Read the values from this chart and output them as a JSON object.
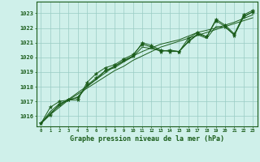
{
  "title": "Graphe pression niveau de la mer (hPa)",
  "bg_color": "#cff0ea",
  "grid_color": "#99ccc4",
  "line_color": "#1a5c1a",
  "marker_color": "#1a5c1a",
  "xlim": [
    -0.5,
    23.5
  ],
  "ylim": [
    1015.3,
    1023.8
  ],
  "yticks": [
    1016,
    1017,
    1018,
    1019,
    1020,
    1021,
    1022,
    1023
  ],
  "xticks": [
    0,
    1,
    2,
    3,
    4,
    5,
    6,
    7,
    8,
    9,
    10,
    11,
    12,
    13,
    14,
    15,
    16,
    17,
    18,
    19,
    20,
    21,
    22,
    23
  ],
  "hours": [
    0,
    1,
    2,
    3,
    4,
    5,
    6,
    7,
    8,
    9,
    10,
    11,
    12,
    13,
    14,
    15,
    16,
    17,
    18,
    19,
    20,
    21,
    22,
    23
  ],
  "series_main": [
    1015.5,
    1016.1,
    1016.8,
    1017.1,
    1017.3,
    1018.1,
    1018.6,
    1019.1,
    1019.4,
    1019.8,
    1020.1,
    1021.0,
    1020.8,
    1020.5,
    1020.4,
    1020.4,
    1021.1,
    1021.6,
    1021.4,
    1022.5,
    1022.1,
    1021.5,
    1022.8,
    1023.1
  ],
  "series2": [
    1015.5,
    1016.6,
    1017.0,
    1017.1,
    1017.1,
    1018.3,
    1018.9,
    1019.3,
    1019.5,
    1019.9,
    1020.2,
    1020.9,
    1020.7,
    1020.4,
    1020.5,
    1020.4,
    1021.3,
    1021.7,
    1021.4,
    1022.6,
    1022.2,
    1021.6,
    1022.9,
    1023.2
  ],
  "series3": [
    1015.5,
    1016.3,
    1016.85,
    1017.1,
    1017.25,
    1018.0,
    1018.5,
    1019.1,
    1019.3,
    1019.7,
    1020.05,
    1020.7,
    1020.6,
    1020.45,
    1020.45,
    1020.4,
    1021.05,
    1021.55,
    1021.3,
    1022.1,
    1022.05,
    1021.55,
    1022.75,
    1023.1
  ],
  "series_trend1": [
    1015.5,
    1016.1,
    1016.6,
    1017.1,
    1017.5,
    1017.9,
    1018.3,
    1018.7,
    1019.1,
    1019.4,
    1019.8,
    1020.1,
    1020.4,
    1020.7,
    1020.9,
    1021.1,
    1021.3,
    1021.5,
    1021.7,
    1021.9,
    1022.1,
    1022.3,
    1022.5,
    1022.7
  ],
  "series_trend2": [
    1015.5,
    1016.2,
    1016.7,
    1017.15,
    1017.6,
    1018.05,
    1018.5,
    1018.95,
    1019.4,
    1019.75,
    1020.1,
    1020.4,
    1020.65,
    1020.9,
    1021.05,
    1021.2,
    1021.45,
    1021.7,
    1021.85,
    1022.0,
    1022.2,
    1022.4,
    1022.65,
    1022.9
  ]
}
